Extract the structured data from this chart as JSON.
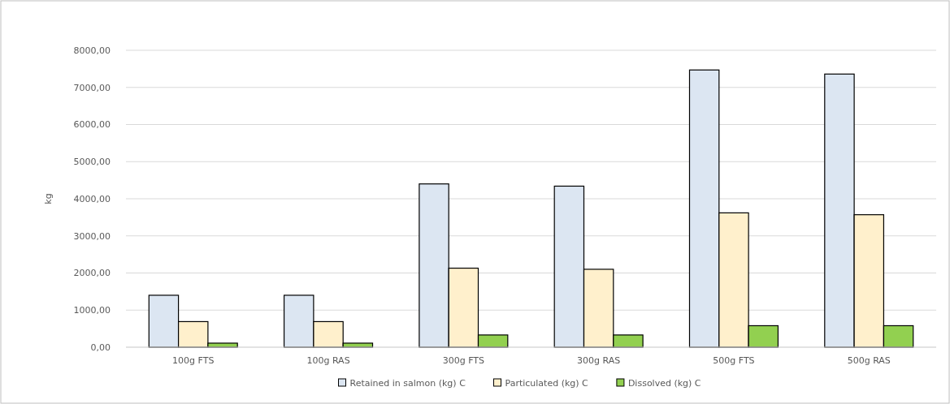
{
  "chart_data": {
    "type": "bar",
    "ylabel": "kg",
    "categories": [
      "100g FTS",
      "100g RAS",
      "300g FTS",
      "300g RAS",
      "500g FTS",
      "500g RAS"
    ],
    "series": [
      {
        "name": "Retained in salmon (kg) C",
        "color": "#dce6f2",
        "values": [
          1400,
          1400,
          4400,
          4340,
          7470,
          7360
        ]
      },
      {
        "name": "Particulated (kg) C",
        "color": "#fff0cc",
        "values": [
          690,
          690,
          2130,
          2100,
          3620,
          3570
        ]
      },
      {
        "name": "Dissolved (kg) C",
        "color": "#92d050",
        "values": [
          110,
          110,
          330,
          330,
          580,
          580
        ]
      }
    ],
    "ylim": [
      0,
      8000
    ],
    "yticks": [
      {
        "value": 0,
        "label": "0,00"
      },
      {
        "value": 1000,
        "label": "1000,00"
      },
      {
        "value": 2000,
        "label": "2000,00"
      },
      {
        "value": 3000,
        "label": "3000,00"
      },
      {
        "value": 4000,
        "label": "4000,00"
      },
      {
        "value": 5000,
        "label": "5000,00"
      },
      {
        "value": 6000,
        "label": "6000,00"
      },
      {
        "value": 7000,
        "label": "7000,00"
      },
      {
        "value": 8000,
        "label": "8000,00"
      }
    ],
    "grid": "y",
    "legend": "bottom"
  }
}
